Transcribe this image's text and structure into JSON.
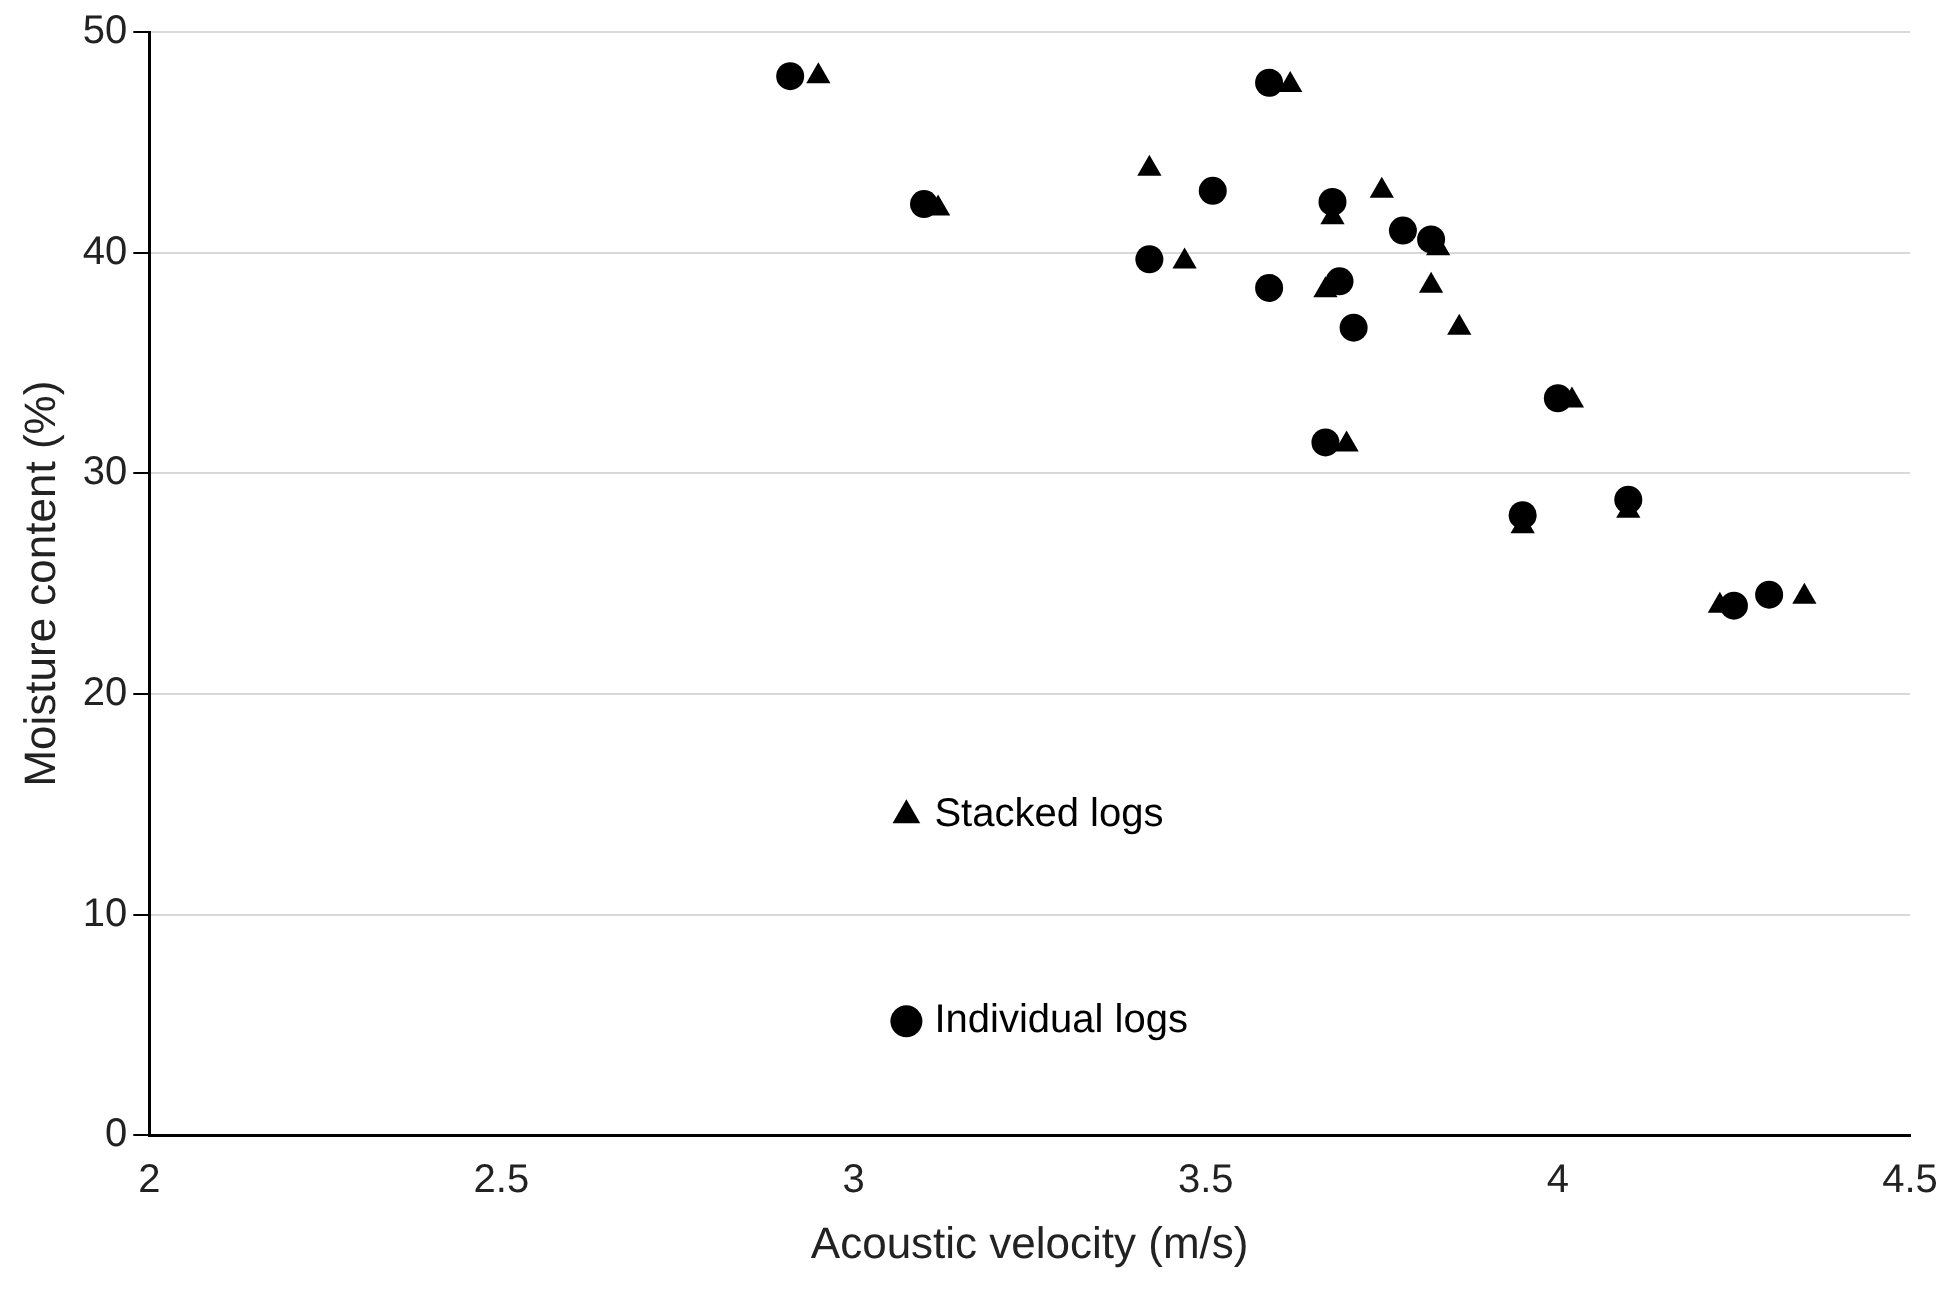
{
  "chart_data": {
    "type": "scatter",
    "xlabel": "Acoustic velocity (m/s)",
    "ylabel": "Moisture content (%)",
    "xlim": [
      2,
      4.5
    ],
    "xticks": [
      2,
      2.5,
      3,
      3.5,
      4,
      4.5
    ],
    "ylim": [
      0,
      50
    ],
    "yticks": [
      0,
      10,
      20,
      30,
      40,
      50
    ],
    "grid": "y",
    "legend": "bottom left",
    "series": [
      {
        "name": "Stacked logs",
        "color": "#000000",
        "marker": "triangle",
        "x": [
          2.95,
          3.12,
          3.42,
          3.47,
          3.62,
          3.68,
          3.67,
          3.75,
          3.83,
          3.82,
          3.86,
          3.7,
          4.02,
          3.95,
          4.1,
          4.23,
          4.35
        ],
        "values": [
          48.0,
          42.0,
          43.8,
          39.6,
          47.6,
          41.6,
          38.3,
          42.8,
          40.2,
          38.5,
          36.6,
          31.3,
          33.3,
          27.6,
          28.3,
          24.0,
          24.4
        ]
      },
      {
        "name": "Individual logs",
        "color": "#000000",
        "marker": "circle",
        "x": [
          2.91,
          3.1,
          3.42,
          3.51,
          3.59,
          3.59,
          3.68,
          3.69,
          3.71,
          3.67,
          3.78,
          3.82,
          4.0,
          3.95,
          4.1,
          4.25,
          4.3
        ],
        "values": [
          48.0,
          42.2,
          39.7,
          42.8,
          47.7,
          38.4,
          42.3,
          38.7,
          36.6,
          31.4,
          41.0,
          40.6,
          33.4,
          28.1,
          28.8,
          24.0,
          24.5
        ]
      }
    ]
  }
}
